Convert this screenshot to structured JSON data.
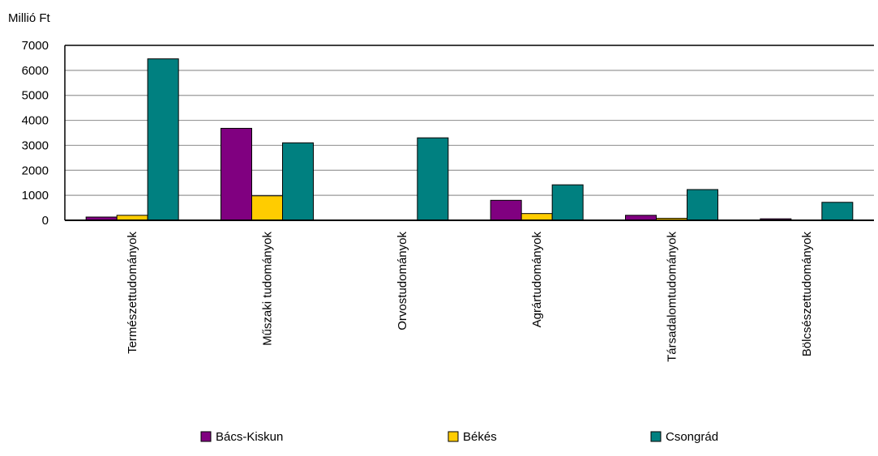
{
  "chart_data": {
    "type": "bar",
    "unit_label": "Millió Ft",
    "categories": [
      "Természettudományok",
      "Műszaki tudományok",
      "Orvostudományok",
      "Agrártudományok",
      "Társadalomtudományok",
      "Bölcsészettudományok"
    ],
    "series": [
      {
        "name": "Bács-Kiskun",
        "color": "#800080",
        "values": [
          130,
          3680,
          0,
          800,
          200,
          60
        ]
      },
      {
        "name": "Békés",
        "color": "#ffcc00",
        "values": [
          200,
          980,
          0,
          270,
          80,
          0
        ]
      },
      {
        "name": "Csongrád",
        "color": "#008080",
        "values": [
          6460,
          3100,
          3300,
          1420,
          1230,
          720
        ]
      }
    ],
    "y_ticks": [
      "0",
      "1000",
      "2000",
      "3000",
      "4000",
      "5000",
      "6000",
      "7000"
    ],
    "ylim": [
      0,
      7000
    ],
    "grid": true,
    "legend": "bottom"
  }
}
